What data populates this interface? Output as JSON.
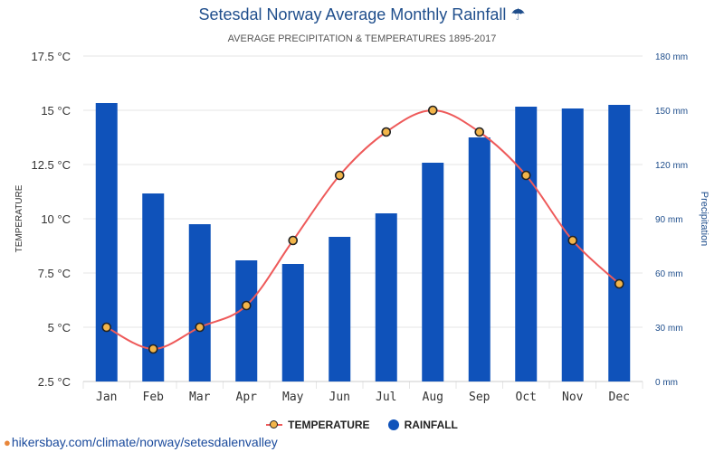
{
  "chart_data": {
    "type": "bar",
    "title": "Setesdal Norway Average Monthly Rainfall",
    "title_icon": "umbrella-icon",
    "subtitle": "AVERAGE PRECIPITATION & TEMPERATURES 1895-2017",
    "categories": [
      "Jan",
      "Feb",
      "Mar",
      "Apr",
      "May",
      "Jun",
      "Jul",
      "Aug",
      "Sep",
      "Oct",
      "Nov",
      "Dec"
    ],
    "series": [
      {
        "name": "TEMPERATURE",
        "type": "line",
        "axis": "left",
        "color": "#ee5a5a",
        "marker_color": "#f2b54a",
        "values": [
          5,
          4,
          5,
          6,
          9,
          12,
          14,
          15,
          14,
          12,
          9,
          7
        ]
      },
      {
        "name": "RAINFALL",
        "type": "bar",
        "axis": "right",
        "color": "#0f52ba",
        "values": [
          154,
          104,
          87,
          67,
          65,
          80,
          93,
          121,
          135,
          152,
          151,
          153
        ]
      }
    ],
    "ylabel_left": "TEMPERATURE",
    "ylabel_right": "Precipitation",
    "ylim_left": [
      2.5,
      17.5
    ],
    "ylim_right": [
      0,
      180
    ],
    "y_ticks_left": [
      "2.5 °C",
      "5 °C",
      "7.5 °C",
      "10 °C",
      "12.5 °C",
      "15 °C",
      "17.5 °C"
    ],
    "y_ticks_right": [
      "0 mm",
      "30 mm",
      "60 mm",
      "90 mm",
      "120 mm",
      "150 mm",
      "180 mm"
    ],
    "grid": true,
    "legend_position": "bottom-center",
    "colors": {
      "title": "#1f4e8c",
      "right_axis": "#1f4e8c",
      "grid": "#e6e6e6"
    }
  },
  "legend": {
    "temperature_label": "TEMPERATURE",
    "rainfall_label": "RAINFALL"
  },
  "source": {
    "text": "hikersbay.com/climate/norway/setesdalenvalley",
    "icon": "location-pin-icon"
  }
}
